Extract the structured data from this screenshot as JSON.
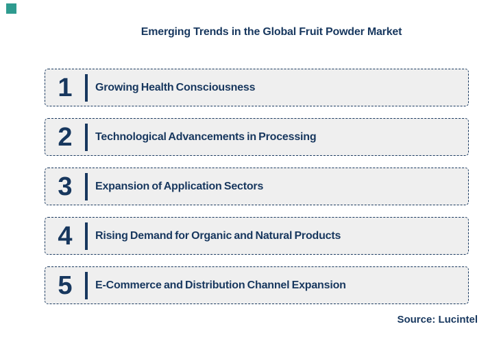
{
  "title": "Emerging Trends in the Global Fruit Powder Market",
  "source": "Source: Lucintel",
  "trends": [
    {
      "number": "1",
      "label": "Growing Health Consciousness"
    },
    {
      "number": "2",
      "label": "Technological Advancements in Processing"
    },
    {
      "number": "3",
      "label": "Expansion of Application Sectors"
    },
    {
      "number": "4",
      "label": "Rising Demand for Organic and Natural Products"
    },
    {
      "number": "5",
      "label": "E-Commerce and Distribution Channel Expansion"
    }
  ],
  "colors": {
    "navy": "#17375E",
    "row_background": "#EFEFEF",
    "accent_teal": "#2E9B8F",
    "page_background": "#FFFFFF"
  }
}
